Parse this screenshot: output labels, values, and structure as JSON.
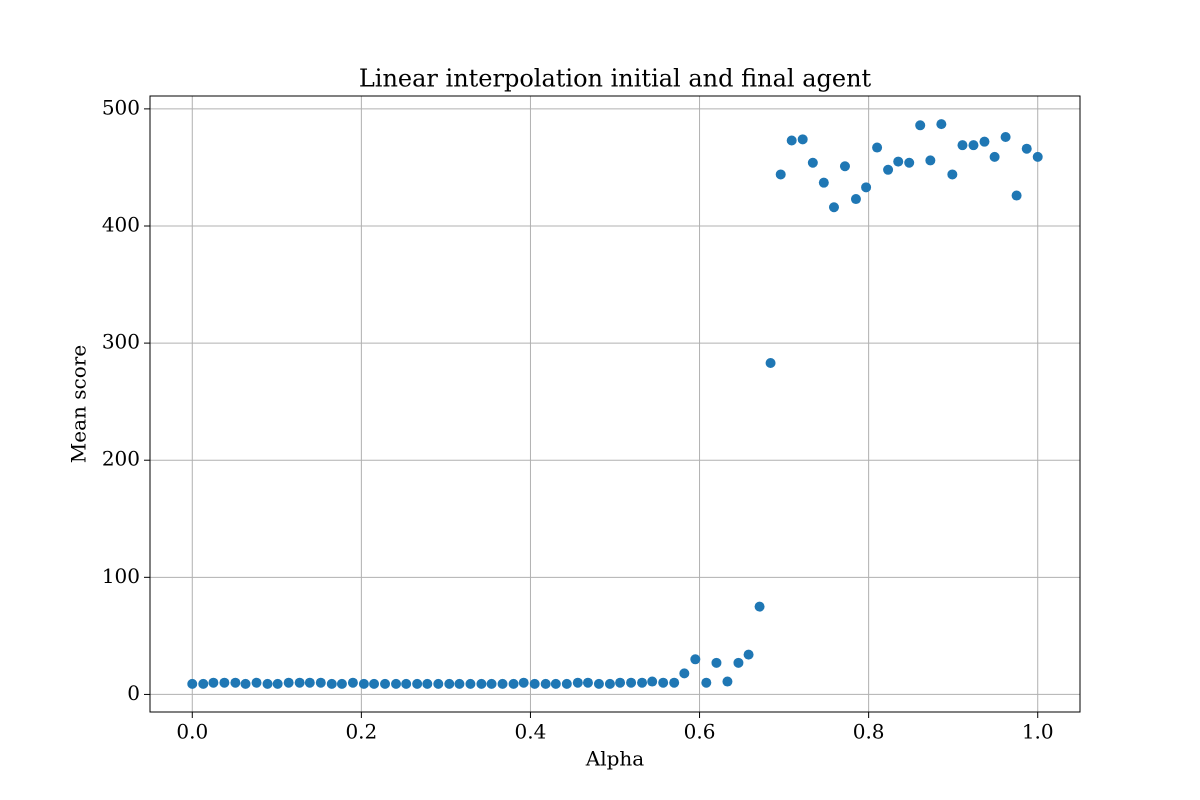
{
  "chart_data": {
    "type": "scatter",
    "title": "Linear interpolation initial and final agent",
    "x_label": "Alpha",
    "y_label": "Mean score",
    "series": [
      {
        "color": "#1f77b4",
        "x": [
          0,
          0.013,
          0.025,
          0.038,
          0.051,
          0.063,
          0.076,
          0.089,
          0.101,
          0.114,
          0.127,
          0.139,
          0.152,
          0.165,
          0.177,
          0.19,
          0.203,
          0.215,
          0.228,
          0.241,
          0.253,
          0.266,
          0.278,
          0.291,
          0.304,
          0.316,
          0.329,
          0.342,
          0.354,
          0.367,
          0.38,
          0.392,
          0.405,
          0.418,
          0.43,
          0.443,
          0.456,
          0.468,
          0.481,
          0.494,
          0.506,
          0.519,
          0.532,
          0.544,
          0.557,
          0.57,
          0.582,
          0.595,
          0.608,
          0.62,
          0.633,
          0.646,
          0.658,
          0.671,
          0.684,
          0.696,
          0.709,
          0.722,
          0.734,
          0.747,
          0.759,
          0.772,
          0.785,
          0.797,
          0.81,
          0.823,
          0.835,
          0.848,
          0.861,
          0.873,
          0.886,
          0.899,
          0.911,
          0.924,
          0.937,
          0.949,
          0.962,
          0.975,
          0.987,
          1
        ],
        "values": [
          9,
          9,
          10,
          10,
          10,
          9,
          10,
          9,
          9,
          10,
          10,
          10,
          10,
          9,
          9,
          10,
          9,
          9,
          9,
          9,
          9,
          9,
          9,
          9,
          9,
          9,
          9,
          9,
          9,
          9,
          9,
          10,
          9,
          9,
          9,
          9,
          10,
          10,
          9,
          9,
          10,
          10,
          10,
          11,
          10,
          10,
          18,
          30,
          10,
          27,
          11,
          27,
          34,
          75,
          283,
          444,
          473,
          474,
          454,
          437,
          416,
          451,
          423,
          433,
          467,
          448,
          455,
          454,
          486,
          456,
          487,
          444,
          469,
          469,
          472,
          459,
          476,
          426,
          466,
          459
        ]
      }
    ],
    "xlim": [
      -0.05,
      1.05
    ],
    "xticks": [
      {
        "value": 0,
        "label": "0.0"
      },
      {
        "value": 0.2,
        "label": "0.2"
      },
      {
        "value": 0.4,
        "label": "0.4"
      },
      {
        "value": 0.6,
        "label": "0.6"
      },
      {
        "value": 0.8,
        "label": "0.8"
      },
      {
        "value": 1,
        "label": "1.0"
      }
    ],
    "ylim": [
      -15,
      511
    ],
    "yticks": [
      0,
      100,
      200,
      300,
      400,
      500
    ],
    "grid": true
  }
}
